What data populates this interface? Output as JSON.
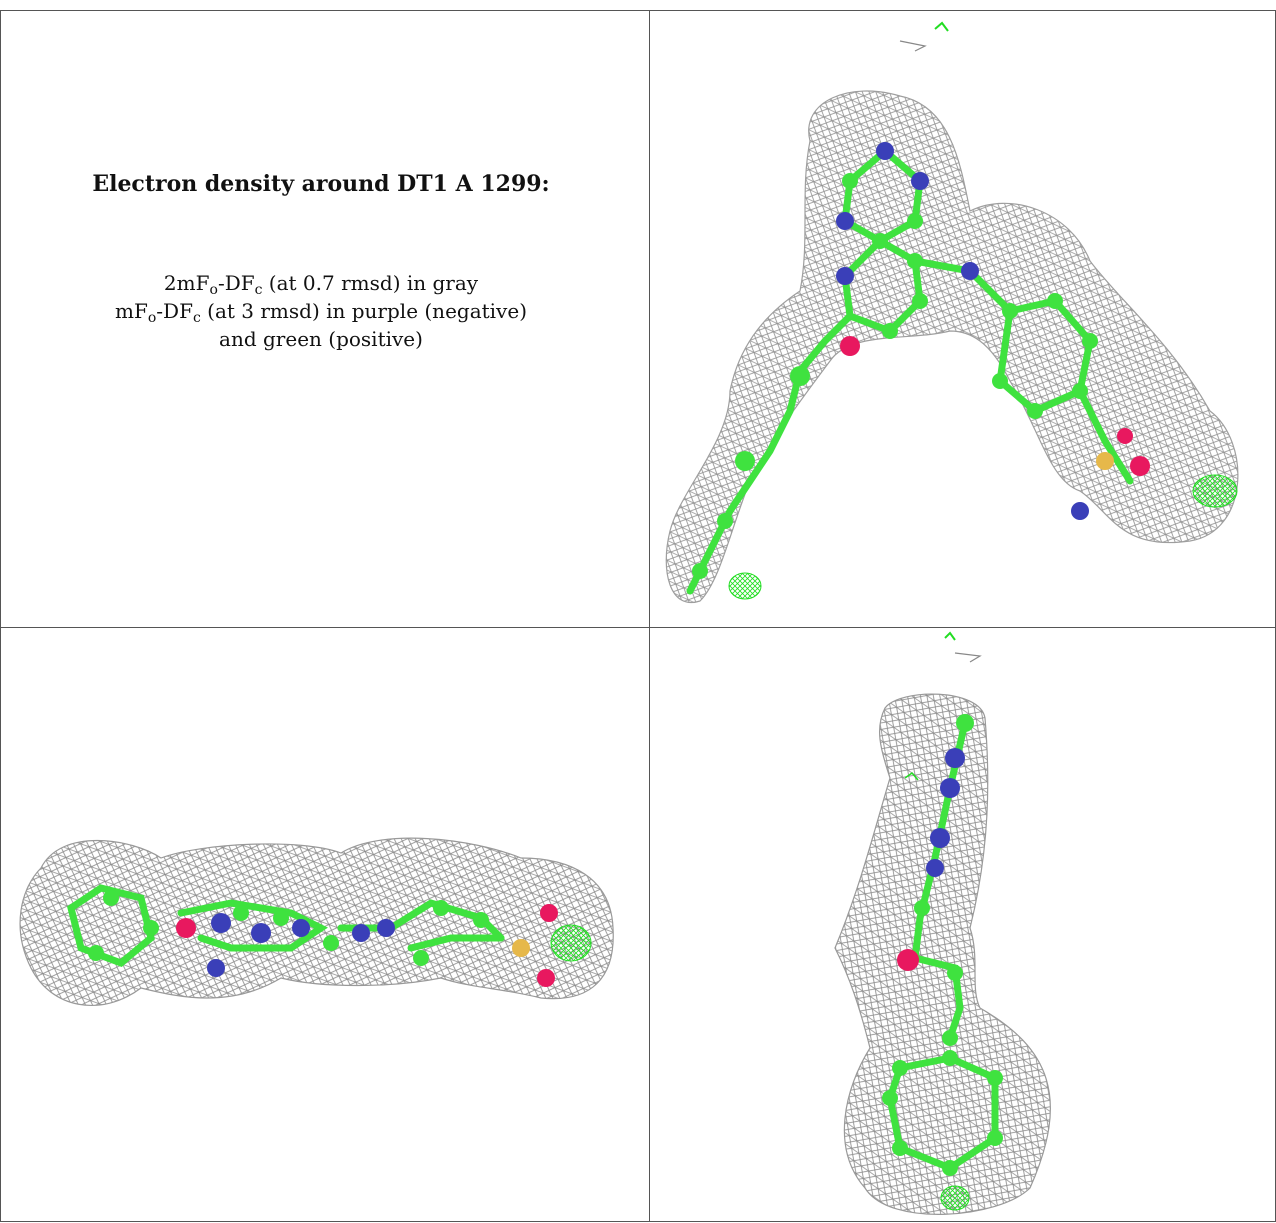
{
  "caption": {
    "title": "Electron density around DT1 A 1299:",
    "line1": {
      "pre": "2mF",
      "sub1": "o",
      "mid": "-DF",
      "sub2": "c",
      "post": " (at 0.7 rmsd) in gray"
    },
    "line2": {
      "pre": "mF",
      "sub1": "o",
      "mid": "-DF",
      "sub2": "c",
      "post": " (at 3 rmsd) in purple (negative)"
    },
    "line3": "and green (positive)"
  },
  "colors": {
    "mesh_gray": "#8c8c8c",
    "carbon_green": "#3fe23f",
    "nitrogen_blue": "#3a3fb8",
    "oxygen_red": "#e8185f",
    "sulfur_yellow": "#e6b84a",
    "positive_density_green": "#22dd22",
    "border": "#555555"
  },
  "panels": [
    {
      "id": "view-top-right",
      "description_icon": "molecule-view-front"
    },
    {
      "id": "view-bottom-left",
      "description_icon": "molecule-view-edge"
    },
    {
      "id": "view-bottom-right",
      "description_icon": "molecule-view-side"
    }
  ]
}
